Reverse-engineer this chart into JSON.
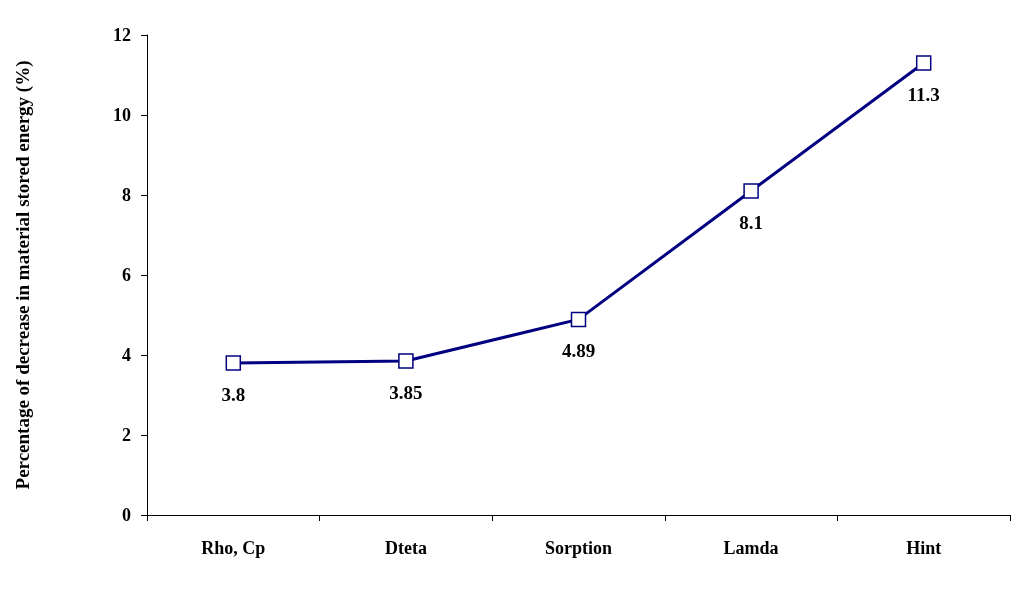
{
  "chart_data": {
    "type": "line",
    "ylabel": "Percentage of decrease in material stored energy (%)",
    "categories": [
      "Rho, Cp",
      "Dteta",
      "Sorption",
      "Lamda",
      "Hint"
    ],
    "series": [
      {
        "color": "#000080",
        "values": [
          3.8,
          3.85,
          4.89,
          8.1,
          11.3
        ]
      }
    ],
    "ylim": [
      0,
      12
    ],
    "yticks": [
      0,
      2,
      4,
      6,
      8,
      10,
      12
    ],
    "grid": false,
    "marker": "square",
    "line_style": "solid",
    "data_labels": true
  }
}
